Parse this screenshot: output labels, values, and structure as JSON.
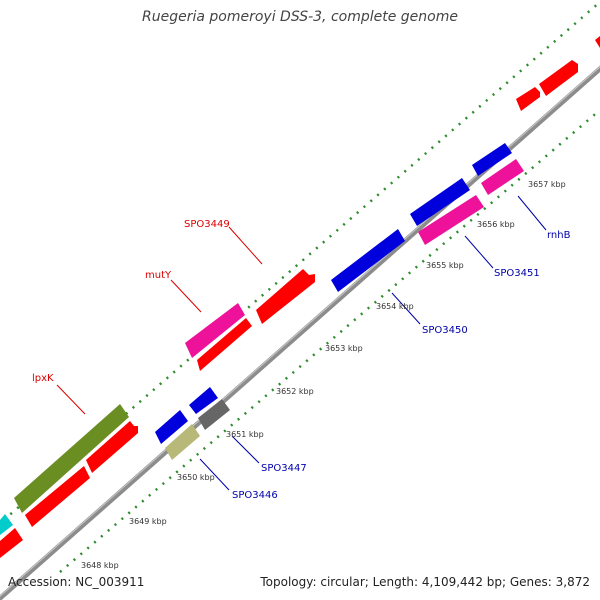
{
  "title": "Ruegeria pomeroyi DSS-3, complete genome",
  "footer": {
    "accession": "Accession: NC_003911",
    "summary": "Topology: circular; Length: 4,109,442 bp; Genes: 3,872"
  },
  "colors": {
    "red": "#ff0000",
    "blue": "#0000dd",
    "magenta": "#ee1199",
    "olive": "#6b8e23",
    "khaki": "#b8b878",
    "gray": "#666666",
    "cyan": "#00cccc",
    "dots": "#2e8b2e",
    "label_red": "#dd0000",
    "label_blue": "#0000aa"
  },
  "kbp_labels": [
    "3648 kbp",
    "3649 kbp",
    "3650 kbp",
    "3651 kbp",
    "3652 kbp",
    "3653 kbp",
    "3654 kbp",
    "3655 kbp",
    "3656 kbp",
    "3657 kbp"
  ],
  "gene_labels_forward": [
    "SPO3449",
    "mutY",
    "lpxK"
  ],
  "gene_labels_reverse": [
    "SPO3451",
    "rnhB",
    "SPO3450",
    "SPO3447",
    "SPO3446"
  ]
}
